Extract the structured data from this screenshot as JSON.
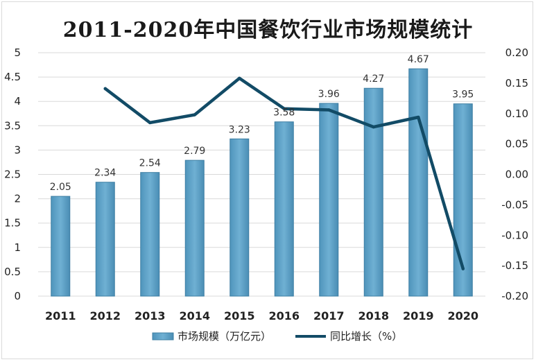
{
  "chart_data": {
    "type": "bar",
    "title": "2011-2020年中国餐饮行业市场规模统计",
    "categories": [
      "2011",
      "2012",
      "2013",
      "2014",
      "2015",
      "2016",
      "2017",
      "2018",
      "2019",
      "2020"
    ],
    "series": [
      {
        "name": "市场规模（万亿元）",
        "type": "bar",
        "axis": "left",
        "values": [
          2.05,
          2.34,
          2.54,
          2.79,
          3.23,
          3.58,
          3.96,
          4.27,
          4.67,
          3.95
        ],
        "labels": [
          "2.05",
          "2.34",
          "2.54",
          "2.79",
          "3.23",
          "3.58",
          "3.96",
          "4.27",
          "4.67",
          "3.95"
        ]
      },
      {
        "name": "同比增长（%）",
        "type": "line",
        "axis": "right",
        "values": [
          null,
          0.141,
          0.085,
          0.098,
          0.158,
          0.108,
          0.106,
          0.078,
          0.094,
          -0.155
        ]
      }
    ],
    "ylim_left": [
      0,
      5
    ],
    "yticks_left": [
      "0",
      "0.5",
      "1",
      "1.5",
      "2",
      "2.5",
      "3",
      "3.5",
      "4",
      "4.5",
      "5"
    ],
    "ylim_right": [
      -0.2,
      0.2
    ],
    "yticks_right": [
      "-0.20",
      "-0.15",
      "-0.10",
      "-0.05",
      "0.00",
      "0.05",
      "0.10",
      "0.15",
      "0.20"
    ],
    "grid": true,
    "legend": "bottom"
  },
  "colors": {
    "bar_fill": "#5fa3c8",
    "bar_edge": "#3e7fa3",
    "line": "#124b66",
    "grid": "#d9d9d9"
  }
}
